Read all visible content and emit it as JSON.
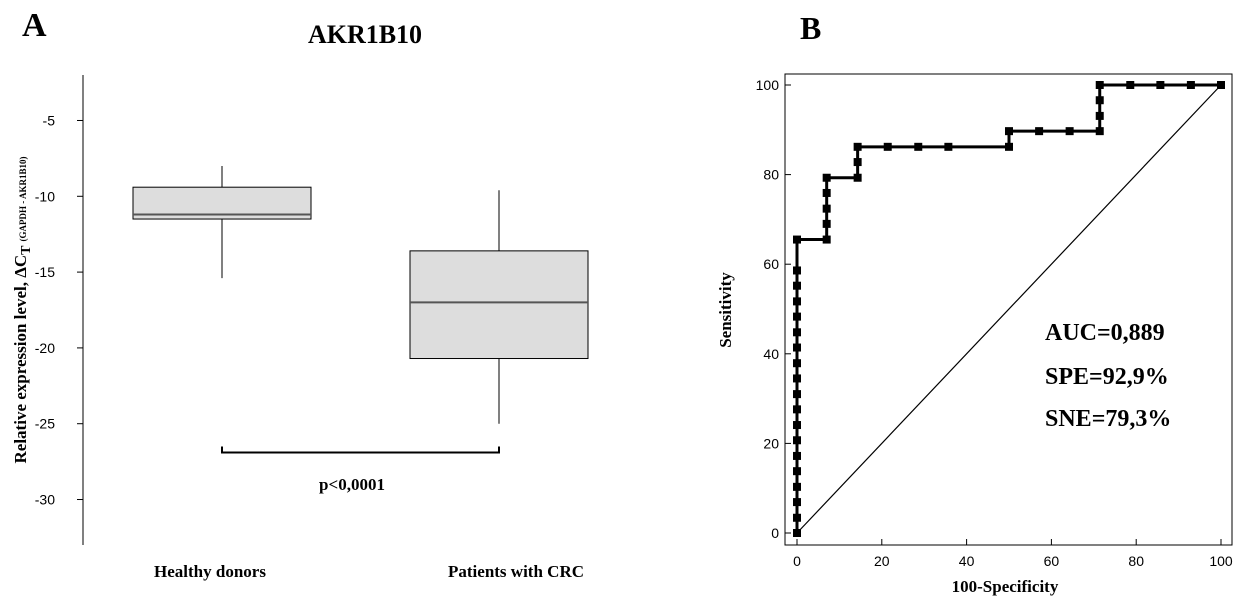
{
  "panels": {
    "a": {
      "letter": "A"
    },
    "b": {
      "letter": "B"
    }
  },
  "colors": {
    "box_fill": "#dddddd",
    "stroke": "#000000",
    "median": "#555555"
  },
  "chart_data": [
    {
      "type": "box",
      "title": "AKR1B10",
      "ylabel_main": "Relative expression level, ΔC",
      "ylabel_sub": "T",
      "ylabel_small": "(GAPDH - AKR1B10)",
      "ylim": [
        -33,
        -2
      ],
      "yticks": [
        -5,
        -10,
        -15,
        -20,
        -25,
        -30
      ],
      "categories": [
        "Healthy donors",
        "Patients with CRC"
      ],
      "boxes": [
        {
          "whisker_high": -8,
          "q3": -9.4,
          "median": -11.2,
          "q1": -11.5,
          "whisker_low": -15.4
        },
        {
          "whisker_high": -9.6,
          "q3": -13.6,
          "median": -17,
          "q1": -20.7,
          "whisker_low": -25
        }
      ],
      "annotation": "p<0,0001",
      "bracket_y": -26.9
    },
    {
      "type": "line",
      "xlabel": "100-Specificity",
      "ylabel": "Sensitivity",
      "xlim": [
        0,
        100
      ],
      "ylim": [
        0,
        100
      ],
      "xticks": [
        0,
        20,
        40,
        60,
        80,
        100
      ],
      "yticks": [
        0,
        20,
        40,
        60,
        80,
        100
      ],
      "roc_x": [
        0,
        0,
        0,
        0,
        0,
        0,
        0,
        0,
        0,
        0,
        0,
        0,
        0,
        0,
        0,
        0,
        0,
        0,
        0,
        7,
        7,
        7,
        7,
        7,
        14.3,
        14.3,
        14.3,
        21.4,
        28.6,
        35.7,
        50,
        50,
        57.1,
        64.3,
        71.4,
        71.4,
        71.4,
        71.4,
        78.6,
        85.7,
        92.9,
        100
      ],
      "roc_y": [
        0,
        3.4,
        6.9,
        10.3,
        13.8,
        17.2,
        20.7,
        24.1,
        27.6,
        31,
        34.5,
        37.9,
        41.4,
        44.8,
        48.3,
        51.7,
        55.2,
        58.6,
        65.5,
        65.5,
        69,
        72.4,
        75.9,
        79.3,
        79.3,
        82.8,
        86.2,
        86.2,
        86.2,
        86.2,
        86.2,
        89.7,
        89.7,
        89.7,
        89.7,
        93.1,
        96.6,
        100,
        100,
        100,
        100,
        100
      ],
      "reference_line": [
        [
          0,
          0
        ],
        [
          100,
          100
        ]
      ],
      "stats": [
        "AUC=0,889",
        "SPE=92,9%",
        "SNE=79,3%"
      ]
    }
  ]
}
